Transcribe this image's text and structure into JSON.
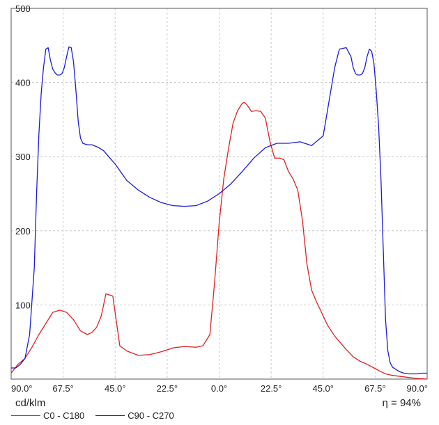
{
  "chart_data": {
    "type": "line",
    "title": "",
    "ylabel": "cd/klm",
    "xlabel": "",
    "efficiency_label": "η = 94%",
    "x_tick_labels": [
      "90.0°",
      "67.5°",
      "45.0°",
      "22.5°",
      "0.0°",
      "22.5°",
      "45.0°",
      "67.5°",
      "90.0°"
    ],
    "x_ticks": [
      -90,
      -67.5,
      -45,
      -22.5,
      0,
      22.5,
      45,
      67.5,
      90
    ],
    "xlim": [
      -90,
      90
    ],
    "y_ticks": [
      100,
      200,
      300,
      400,
      500
    ],
    "ylim": [
      0,
      500
    ],
    "grid": true,
    "legend_position": "bottom-left",
    "series": [
      {
        "name": "C0 - C180",
        "color": "#e02020",
        "x": [
          -90,
          -87,
          -84,
          -81,
          -78,
          -75,
          -72,
          -69,
          -66,
          -63,
          -60,
          -57,
          -55,
          -53,
          -51,
          -49,
          -46,
          -43,
          -40,
          -35,
          -30,
          -25,
          -20,
          -15,
          -10,
          -7,
          -4,
          -2,
          0,
          2,
          4,
          6,
          8,
          10,
          11,
          12,
          14,
          16,
          18,
          20,
          22,
          24,
          26,
          28,
          30,
          32,
          34,
          36,
          38,
          40,
          42,
          44,
          45,
          47,
          50,
          53,
          55,
          58,
          61,
          64,
          67,
          70,
          72,
          75,
          80,
          85,
          90
        ],
        "y": [
          8,
          20,
          28,
          43,
          60,
          75,
          90,
          93,
          90,
          80,
          65,
          60,
          63,
          70,
          85,
          115,
          112,
          45,
          38,
          32,
          33,
          37,
          42,
          44,
          43,
          45,
          60,
          130,
          210,
          270,
          310,
          345,
          362,
          372,
          373,
          370,
          361,
          362,
          361,
          352,
          320,
          298,
          298,
          296,
          280,
          270,
          255,
          215,
          155,
          120,
          105,
          92,
          85,
          72,
          58,
          47,
          40,
          30,
          24,
          20,
          15,
          10,
          7,
          5,
          3,
          1,
          0
        ]
      },
      {
        "name": "C90 - C270",
        "color": "#1a1adf",
        "x": [
          -90,
          -88,
          -86,
          -84,
          -82,
          -80,
          -79,
          -78,
          -77,
          -76,
          -75,
          -74,
          -73,
          -72,
          -71,
          -70,
          -69,
          -68,
          -67,
          -66,
          -65,
          -64,
          -63,
          -62,
          -61,
          -60,
          -59,
          -58,
          -57,
          -55,
          -52,
          -50,
          -45,
          -40,
          -35,
          -30,
          -25,
          -20,
          -15,
          -10,
          -5,
          0,
          5,
          10,
          15,
          20,
          25,
          30,
          35,
          40,
          45,
          50,
          52,
          55,
          57,
          58,
          59,
          60,
          61,
          62,
          63,
          64,
          65,
          66,
          67,
          68,
          69,
          70,
          71,
          72,
          73,
          74,
          75,
          76,
          77,
          78,
          79,
          80,
          82,
          84,
          86,
          88,
          90
        ],
        "y": [
          15,
          15,
          20,
          28,
          60,
          150,
          250,
          330,
          385,
          420,
          445,
          447,
          430,
          418,
          413,
          410,
          410,
          412,
          420,
          435,
          448,
          447,
          428,
          390,
          348,
          325,
          318,
          317,
          316,
          316,
          312,
          308,
          290,
          268,
          255,
          245,
          238,
          234,
          233,
          234,
          240,
          250,
          263,
          280,
          298,
          312,
          318,
          318,
          320,
          315,
          328,
          420,
          445,
          447,
          435,
          420,
          412,
          410,
          410,
          412,
          420,
          435,
          445,
          442,
          425,
          388,
          340,
          270,
          175,
          80,
          38,
          22,
          16,
          14,
          12,
          10,
          9,
          8,
          7,
          7,
          7,
          8,
          8
        ]
      }
    ]
  }
}
